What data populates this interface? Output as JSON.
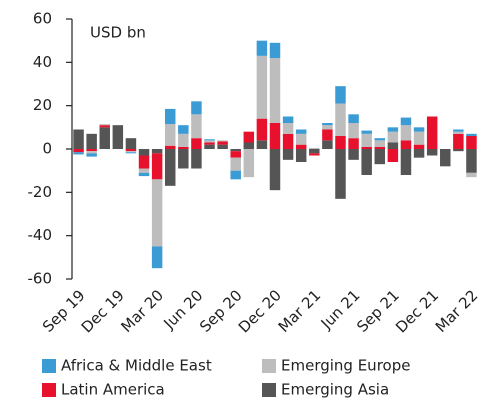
{
  "chart_data": {
    "type": "bar",
    "stacked": true,
    "annotation": "USD bn",
    "categories": [
      "Sep 19",
      null,
      null,
      "Dec 19",
      null,
      null,
      "Mar 20",
      null,
      null,
      "Jun 20",
      null,
      null,
      "Sep 20",
      null,
      null,
      "Dec 20",
      null,
      null,
      "Mar 21",
      null,
      null,
      "Jun 21",
      null,
      null,
      "Sep 21",
      null,
      null,
      "Dec 21",
      null,
      null,
      "Mar 22"
    ],
    "series": [
      {
        "name": "Africa & Middle East",
        "color": "#3a9bd5",
        "values": [
          -1,
          -1.5,
          0,
          0,
          -0.5,
          -1.5,
          -10,
          7,
          4,
          6,
          0.5,
          0,
          -4,
          0,
          7,
          7,
          3,
          2,
          0,
          1,
          8,
          4,
          1.5,
          1,
          2,
          3.5,
          2,
          0,
          0,
          1,
          1
        ]
      },
      {
        "name": "Emerging Europe",
        "color": "#bdbdbd",
        "values": [
          0,
          -1,
          0.5,
          0,
          -0.5,
          -2,
          -31,
          10,
          6,
          11,
          1,
          0.5,
          -6,
          -13,
          29,
          30,
          5,
          5,
          0.5,
          2,
          15,
          7,
          6,
          3,
          5,
          7,
          6,
          0,
          0,
          1,
          -2
        ]
      },
      {
        "name": "Latin America",
        "color": "#e8112d",
        "values": [
          -1.5,
          -1,
          1,
          0,
          -1,
          -6,
          -12,
          1.5,
          1,
          5,
          1,
          1.5,
          -3,
          5,
          10,
          12,
          7,
          2,
          -1,
          5,
          6,
          5,
          1,
          1,
          -6,
          4,
          2,
          15,
          0,
          7,
          6
        ]
      },
      {
        "name": "Emerging Asia",
        "color": "#555555",
        "values": [
          9,
          7,
          10,
          11,
          5,
          -3,
          -2,
          -17,
          -9,
          -9,
          2,
          2,
          -1,
          3,
          4,
          -19,
          -5,
          -6,
          -2,
          4,
          -23,
          -5,
          -12,
          -7,
          3,
          -12,
          -4,
          -3,
          -8,
          -1,
          -11
        ]
      }
    ],
    "stack_order": [
      "Emerging Asia",
      "Latin America",
      "Emerging Europe",
      "Africa & Middle East"
    ],
    "ylim": [
      -60,
      60
    ],
    "yticks": [
      -60,
      -40,
      -20,
      0,
      20,
      40,
      60
    ],
    "grid": false
  }
}
